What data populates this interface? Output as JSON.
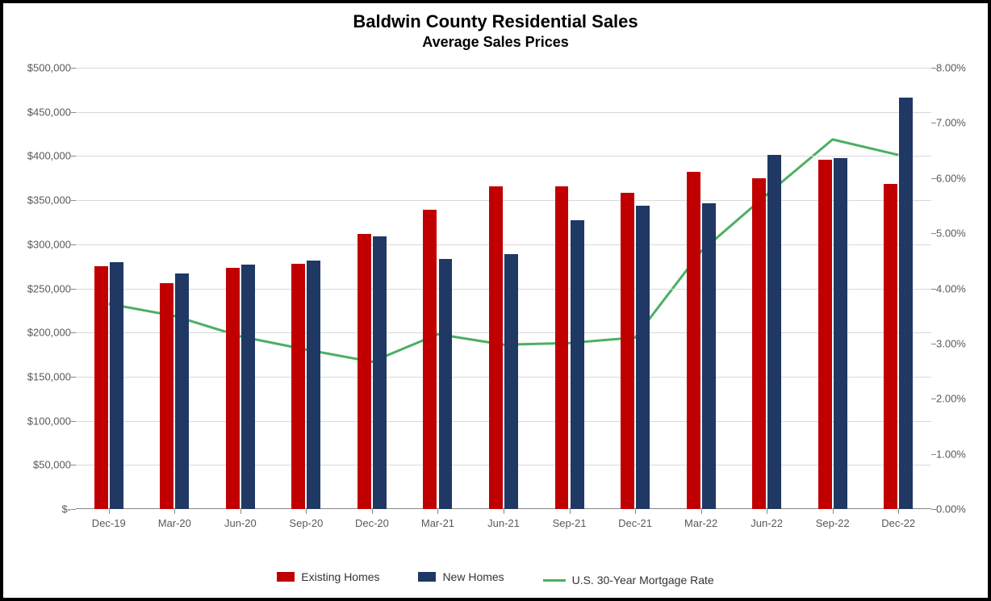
{
  "chart": {
    "type": "bar+line",
    "title": "Baldwin County Residential Sales",
    "subtitle": "Average Sales Prices",
    "title_fontsize": 22,
    "subtitle_fontsize": 18,
    "background_color": "#ffffff",
    "grid_color": "#d9d9d9",
    "border_color": "#000000",
    "label_color": "#595959",
    "label_fontsize": 13,
    "categories": [
      "Dec-19",
      "Mar-20",
      "Jun-20",
      "Sep-20",
      "Dec-20",
      "Mar-21",
      "Jun-21",
      "Sep-21",
      "Dec-21",
      "Mar-22",
      "Jun-22",
      "Sep-22",
      "Dec-22"
    ],
    "y_left": {
      "min": 0,
      "max": 500000,
      "step": 50000,
      "labels": [
        "$-",
        "$50,000",
        "$100,000",
        "$150,000",
        "$200,000",
        "$250,000",
        "$300,000",
        "$350,000",
        "$400,000",
        "$450,000",
        "$500,000"
      ]
    },
    "y_right": {
      "min": 0,
      "max": 8,
      "step": 1,
      "labels": [
        "0.00%",
        "1.00%",
        "2.00%",
        "3.00%",
        "4.00%",
        "5.00%",
        "6.00%",
        "7.00%",
        "8.00%"
      ]
    },
    "series": {
      "existing": {
        "label": "Existing Homes",
        "color": "#c00000",
        "values": [
          275000,
          256000,
          273000,
          278000,
          312000,
          339000,
          366000,
          366000,
          358000,
          382000,
          375000,
          396000,
          368000
        ]
      },
      "new": {
        "label": "New Homes",
        "color": "#1f3864",
        "values": [
          280000,
          267000,
          277000,
          282000,
          309000,
          283000,
          289000,
          327000,
          344000,
          346000,
          401000,
          398000,
          466000
        ]
      },
      "mortgage": {
        "label": "U.S. 30-Year Mortgage Rate",
        "color": "#4caf62",
        "line_width": 3,
        "values": [
          3.72,
          3.5,
          3.13,
          2.89,
          2.67,
          3.17,
          2.98,
          3.01,
          3.11,
          4.67,
          5.7,
          6.7,
          6.42
        ]
      }
    },
    "bar_width_pct": 1.6,
    "bar_gap_pct": 0.2
  }
}
